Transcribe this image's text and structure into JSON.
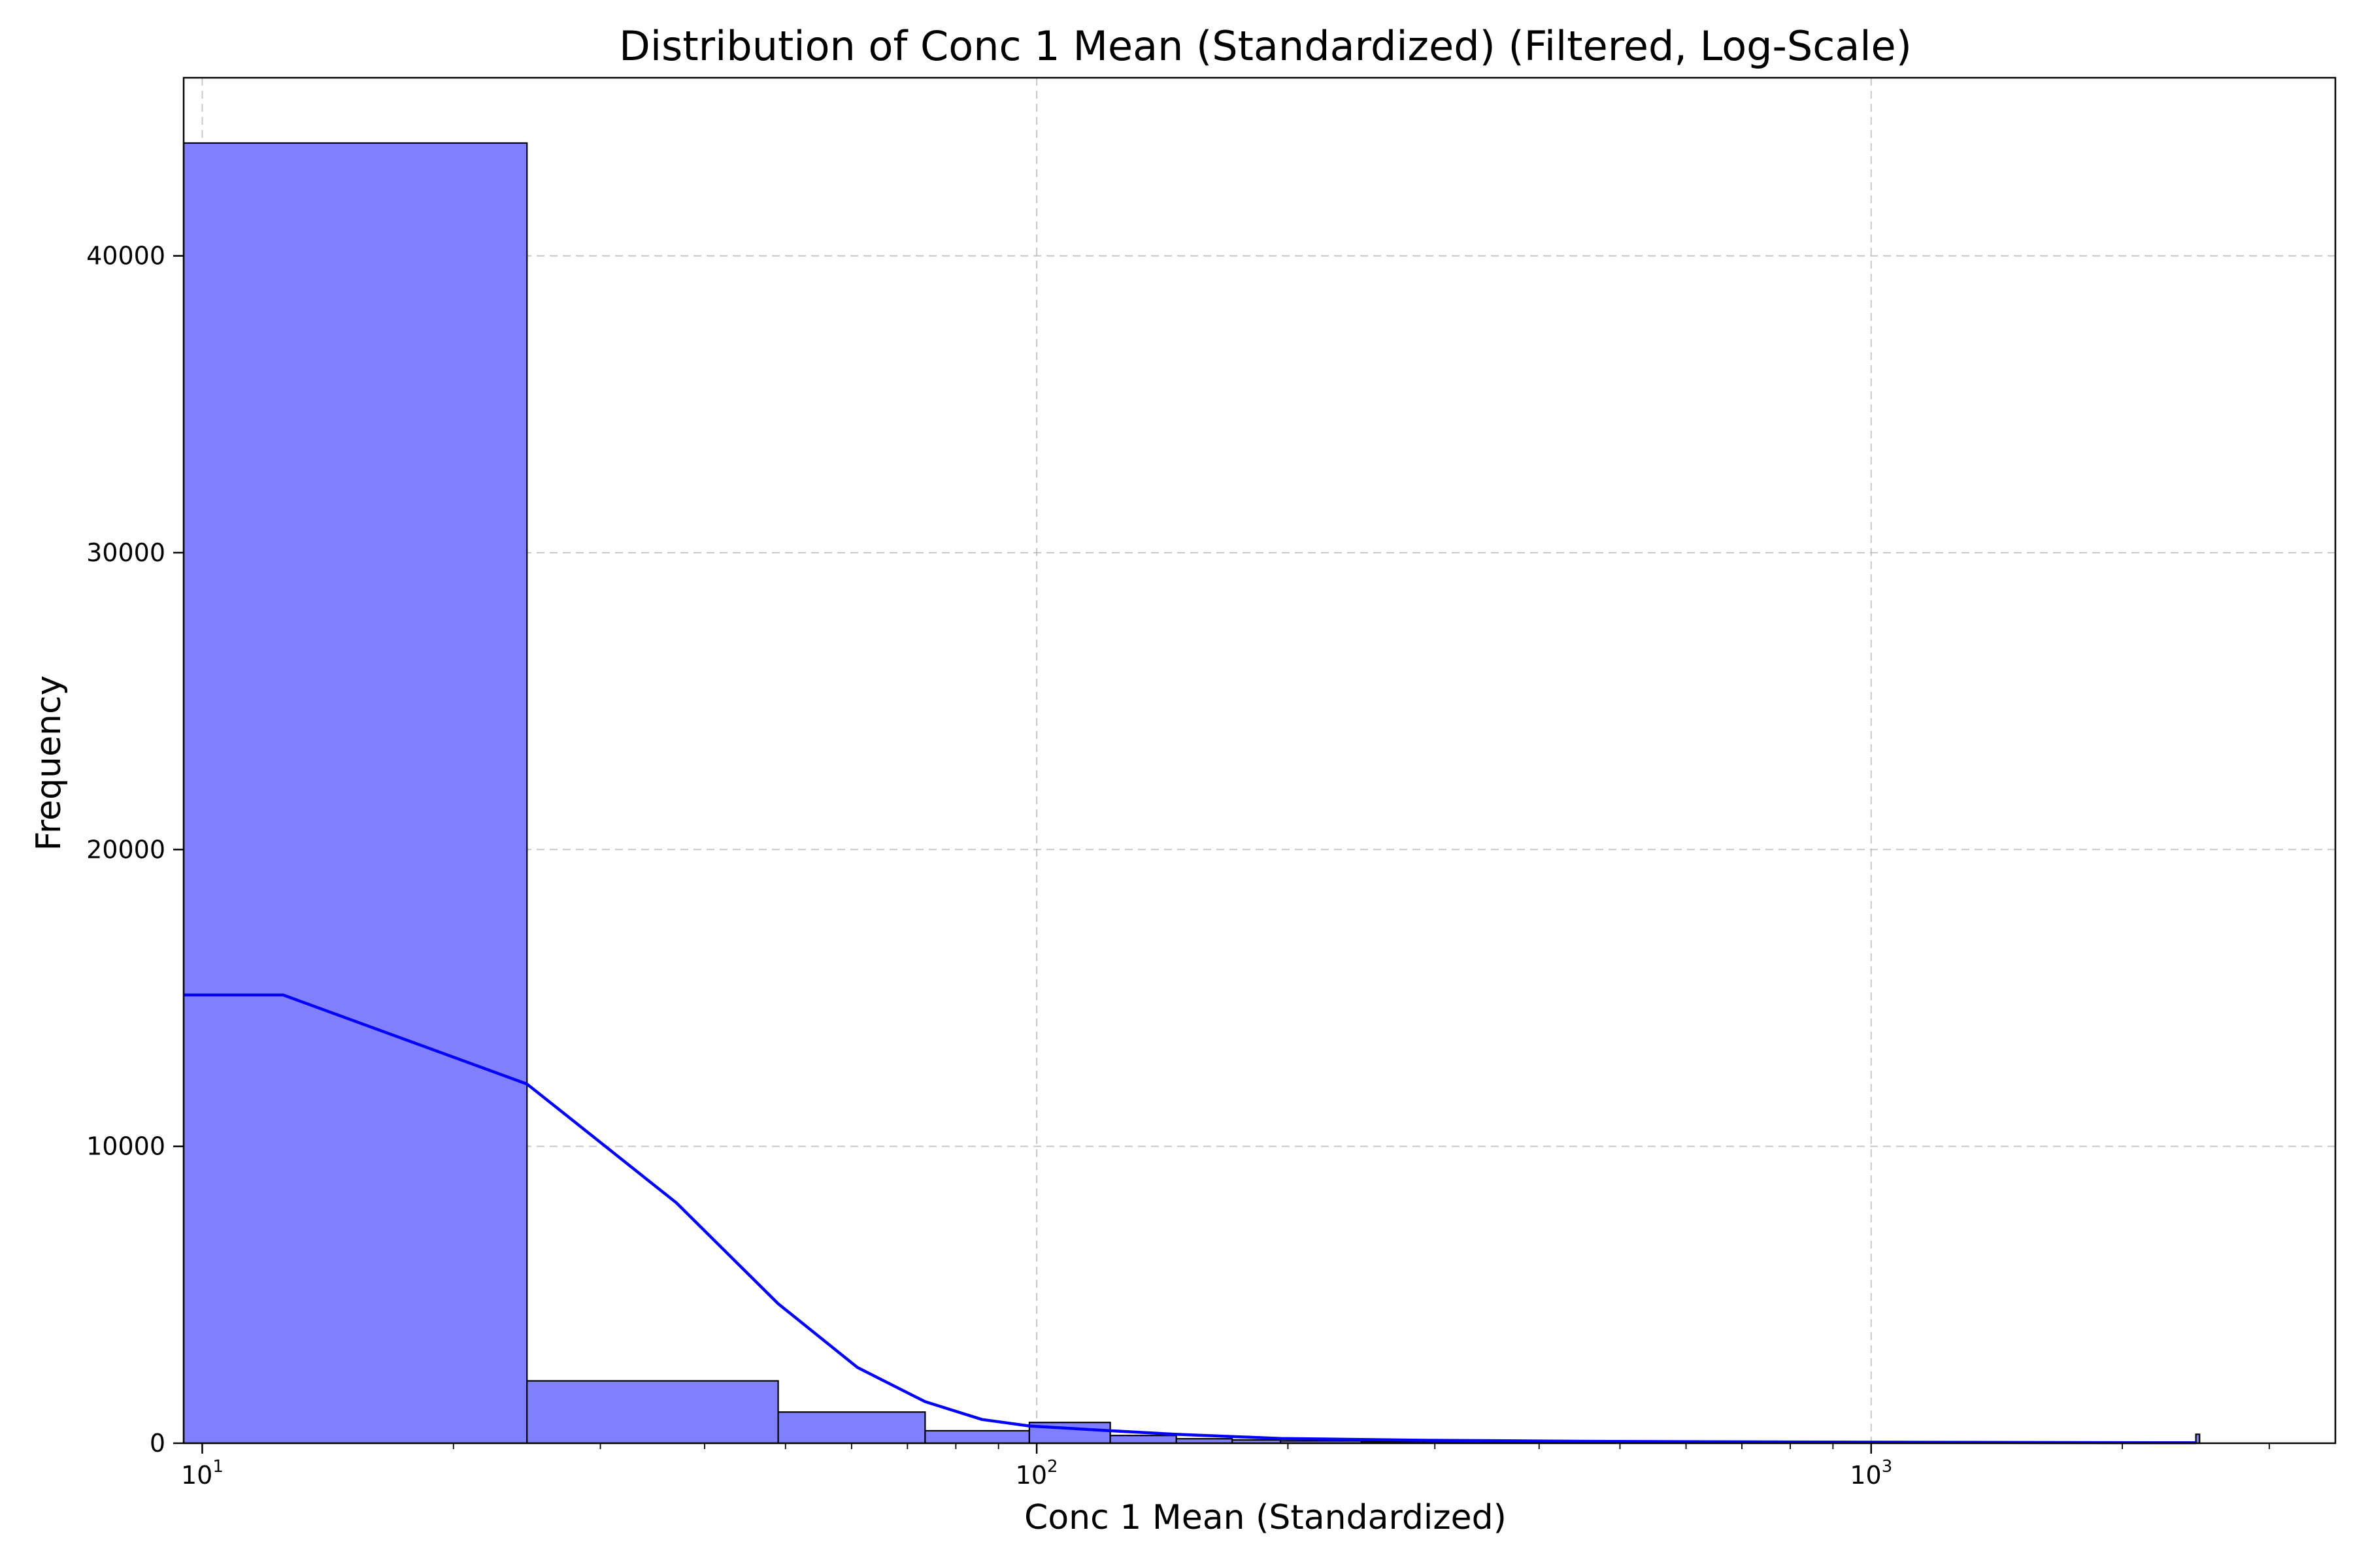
{
  "chart_data": {
    "type": "bar",
    "title": "Distribution of Conc 1 Mean (Standardized) (Filtered, Log-Scale)",
    "xlabel": "Conc 1 Mean (Standardized)",
    "ylabel": "Frequency",
    "x_scale": "log",
    "xlim": [
      9.5,
      3600
    ],
    "ylim": [
      0,
      46000
    ],
    "grid": true,
    "x_ticks": [
      {
        "value": 10,
        "base": "10",
        "exp": "1"
      },
      {
        "value": 100,
        "base": "10",
        "exp": "2"
      },
      {
        "value": 1000,
        "base": "10",
        "exp": "3"
      }
    ],
    "y_ticks": [
      0,
      10000,
      20000,
      30000,
      40000
    ],
    "bins": [
      {
        "x0": 9.5,
        "x1": 24.5,
        "count": 43800
      },
      {
        "x0": 24.5,
        "x1": 49,
        "count": 2100
      },
      {
        "x0": 49,
        "x1": 73.5,
        "count": 1050
      },
      {
        "x0": 73.5,
        "x1": 98,
        "count": 420
      },
      {
        "x0": 98,
        "x1": 122.5,
        "count": 700
      },
      {
        "x0": 122.5,
        "x1": 147,
        "count": 260
      },
      {
        "x0": 147,
        "x1": 171.5,
        "count": 150
      },
      {
        "x0": 171.5,
        "x1": 196,
        "count": 110
      },
      {
        "x0": 196,
        "x1": 245,
        "count": 80
      },
      {
        "x0": 245,
        "x1": 343,
        "count": 55
      },
      {
        "x0": 343,
        "x1": 490,
        "count": 35
      },
      {
        "x0": 490,
        "x1": 735,
        "count": 25
      },
      {
        "x0": 735,
        "x1": 1225,
        "count": 15
      },
      {
        "x0": 1225,
        "x1": 2450,
        "count": 10
      },
      {
        "x0": 2450,
        "x1": 2475,
        "count": 300
      }
    ],
    "kde": {
      "name": "KDE",
      "x": [
        9.5,
        12.5,
        24.5,
        37,
        49,
        61,
        73.5,
        86,
        98,
        122.5,
        147,
        196,
        294,
        490,
        980,
        1960,
        2450
      ],
      "y": [
        15100,
        15100,
        12100,
        8100,
        4700,
        2550,
        1400,
        800,
        580,
        420,
        300,
        160,
        100,
        60,
        35,
        20,
        15
      ]
    },
    "colors": {
      "bar_fill": "#8080ff",
      "bar_edge": "#000000",
      "kde_line": "#0000ff"
    }
  }
}
